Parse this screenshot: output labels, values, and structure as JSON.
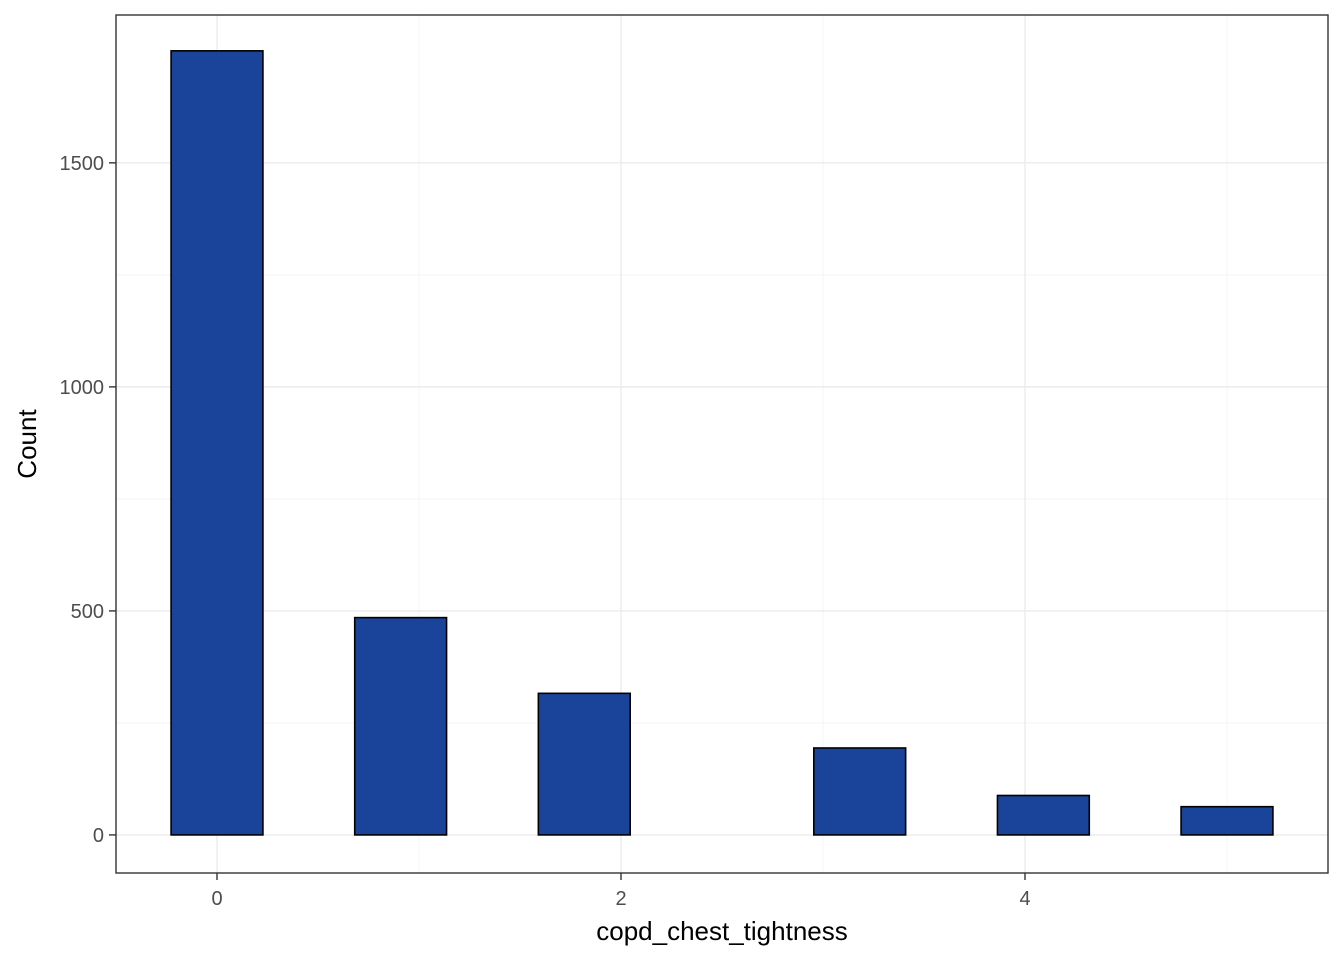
{
  "chart_data": {
    "type": "bar",
    "subtype": "histogram",
    "title": "",
    "xlabel": "copd_chest_tightness",
    "ylabel": "Count",
    "xlim": [
      -0.5,
      5.5
    ],
    "ylim": [
      -85,
      1830
    ],
    "x_ticks": [
      0,
      2,
      4
    ],
    "y_ticks": [
      0,
      500,
      1000,
      1500
    ],
    "bin_width": 0.4545,
    "bins": [
      {
        "x0": -0.2273,
        "x1": 0.2273,
        "count": 1750
      },
      {
        "x0": 0.2273,
        "x1": 0.6818,
        "count": 0
      },
      {
        "x0": 0.6818,
        "x1": 1.1364,
        "count": 485
      },
      {
        "x0": 1.1364,
        "x1": 1.5909,
        "count": 0
      },
      {
        "x0": 1.5909,
        "x1": 2.0455,
        "count": 316
      },
      {
        "x0": 2.0455,
        "x1": 2.5,
        "count": 0
      },
      {
        "x0": 2.5,
        "x1": 2.9545,
        "count": 0
      },
      {
        "x0": 2.9545,
        "x1": 3.4091,
        "count": 194
      },
      {
        "x0": 3.4091,
        "x1": 3.8636,
        "count": 0
      },
      {
        "x0": 3.8636,
        "x1": 4.3182,
        "count": 88
      },
      {
        "x0": 4.3182,
        "x1": 4.7727,
        "count": 0
      },
      {
        "x0": 4.7727,
        "x1": 5.2273,
        "count": 63
      }
    ],
    "grid": true,
    "legend": "none",
    "colors": {
      "bar_fill": "#19449A",
      "bar_stroke": "#000000",
      "grid_major": "#EBEBEB",
      "grid_minor": "#F4F4F4",
      "panel_border": "#333333"
    }
  }
}
